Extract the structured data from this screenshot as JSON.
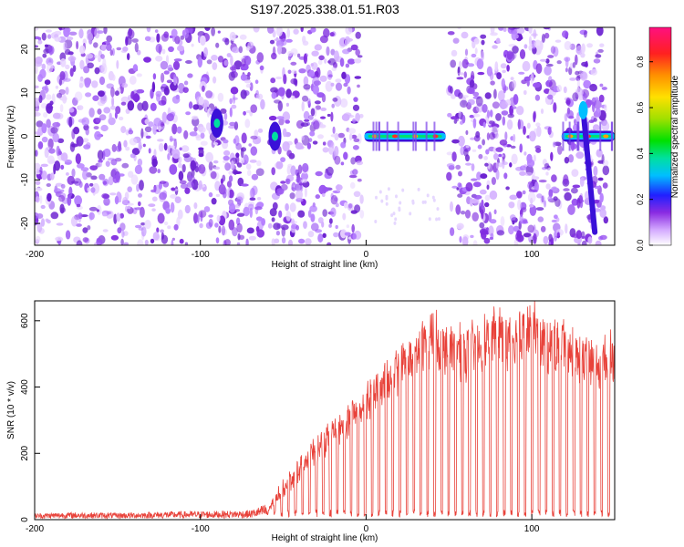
{
  "title": "S197.2025.338.01.51.R03",
  "chart_data": [
    {
      "type": "heatmap",
      "xlabel": "Height of straight line (km)",
      "ylabel": "Frequency (Hz)",
      "xlim": [
        -200,
        150
      ],
      "ylim": [
        -25,
        25
      ],
      "x_ticks": [
        -200,
        -100,
        0,
        100
      ],
      "y_ticks": [
        20,
        10,
        0,
        -10,
        -20
      ],
      "colorbar": {
        "label": "Normalized spectral amplitude",
        "range": [
          0.0,
          0.95
        ],
        "ticks": [
          0.0,
          0.2,
          0.4,
          0.6,
          0.8
        ]
      },
      "gaps_x": [
        [
          -62,
          -58
        ],
        [
          -2,
          50
        ],
        [
          117,
          120
        ],
        [
          145,
          150
        ]
      ],
      "features": [
        {
          "kind": "carrier-band",
          "x_range": [
            -1,
            48
          ],
          "y": 0
        },
        {
          "kind": "carrier-band",
          "x_range": [
            118,
            150
          ],
          "y": 0
        },
        {
          "kind": "blob",
          "x": -55,
          "y": 0
        },
        {
          "kind": "blob",
          "x": -90,
          "y": 3
        },
        {
          "kind": "streak",
          "x_range": [
            131,
            138
          ],
          "y_range": [
            6,
            -22
          ]
        }
      ]
    },
    {
      "type": "line",
      "xlabel": "Height of straight line (km)",
      "ylabel": "SNR (10 * v/v)",
      "xlim": [
        -200,
        150
      ],
      "ylim": [
        0,
        660
      ],
      "x_ticks": [
        -200,
        -100,
        0,
        100
      ],
      "y_ticks": [
        0,
        200,
        400,
        600
      ],
      "series": [
        {
          "color": "#e8423a",
          "points": [
            [
              -200,
              10
            ],
            [
              -180,
              12
            ],
            [
              -150,
              11
            ],
            [
              -120,
              13
            ],
            [
              -90,
              14
            ],
            [
              -70,
              15
            ],
            [
              -60,
              25
            ],
            [
              -50,
              100
            ],
            [
              -40,
              160
            ],
            [
              -30,
              220
            ],
            [
              -20,
              270
            ],
            [
              -10,
              320
            ],
            [
              0,
              360
            ],
            [
              10,
              420
            ],
            [
              20,
              480
            ],
            [
              30,
              520
            ],
            [
              40,
              570
            ],
            [
              50,
              540
            ],
            [
              60,
              520
            ],
            [
              70,
              560
            ],
            [
              80,
              580
            ],
            [
              90,
              560
            ],
            [
              100,
              620
            ],
            [
              110,
              540
            ],
            [
              120,
              560
            ],
            [
              130,
              500
            ],
            [
              140,
              480
            ],
            [
              150,
              520
            ]
          ]
        }
      ]
    }
  ]
}
